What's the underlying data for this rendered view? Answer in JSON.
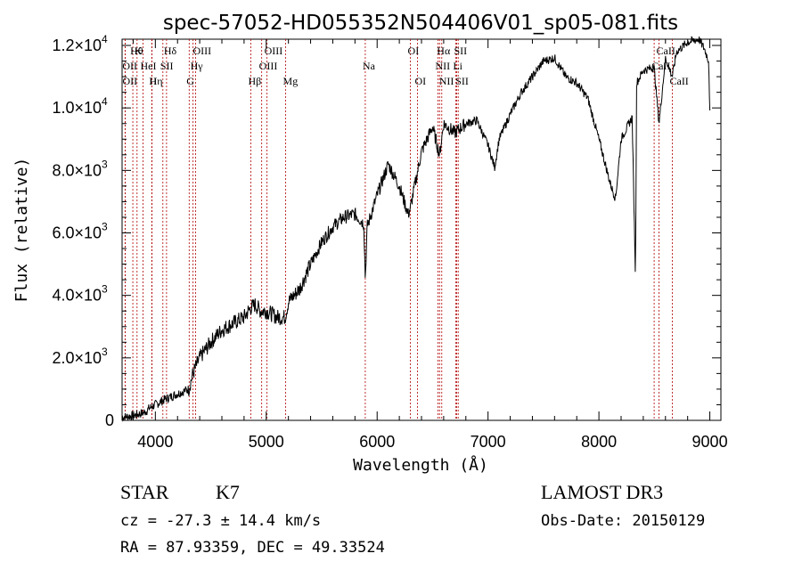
{
  "chart_data": {
    "type": "line",
    "title": "spec-57052-HD055352N504406V01_sp05-081.fits",
    "xlabel": "Wavelength (Å)",
    "ylabel": "Flux (relative)",
    "xlim": [
      3700,
      9100
    ],
    "ylim": [
      0,
      12200
    ],
    "xticks": [
      {
        "value": 4000,
        "label": "4000"
      },
      {
        "value": 5000,
        "label": "5000"
      },
      {
        "value": 6000,
        "label": "6000"
      },
      {
        "value": 7000,
        "label": "7000"
      },
      {
        "value": 8000,
        "label": "8000"
      },
      {
        "value": 9000,
        "label": "9000"
      }
    ],
    "yticks": [
      {
        "value": 0,
        "mant": "0",
        "exp": ""
      },
      {
        "value": 2000,
        "mant": "2.0×10",
        "exp": "3"
      },
      {
        "value": 4000,
        "mant": "4.0×10",
        "exp": "3"
      },
      {
        "value": 6000,
        "mant": "6.0×10",
        "exp": "3"
      },
      {
        "value": 8000,
        "mant": "8.0×10",
        "exp": "3"
      },
      {
        "value": 10000,
        "mant": "1.0×10",
        "exp": "4"
      },
      {
        "value": 12000,
        "mant": "1.2×10",
        "exp": "4"
      }
    ],
    "spectrum": {
      "x": [
        3700,
        3800,
        3900,
        3950,
        4000,
        4100,
        4200,
        4300,
        4340,
        4400,
        4500,
        4600,
        4700,
        4800,
        4860,
        4900,
        4950,
        5000,
        5100,
        5170,
        5200,
        5300,
        5400,
        5500,
        5600,
        5700,
        5800,
        5880,
        5893,
        5910,
        6000,
        6100,
        6200,
        6280,
        6300,
        6400,
        6500,
        6563,
        6600,
        6700,
        6800,
        6900,
        7000,
        7060,
        7100,
        7200,
        7300,
        7400,
        7500,
        7600,
        7700,
        7800,
        7900,
        8000,
        8100,
        8150,
        8200,
        8300,
        8330,
        8340,
        8400,
        8498,
        8542,
        8600,
        8662,
        8700,
        8800,
        8900,
        8950,
        8990,
        9000
      ],
      "y": [
        100,
        150,
        250,
        400,
        500,
        700,
        850,
        1000,
        1500,
        2000,
        2500,
        2900,
        3100,
        3300,
        3600,
        3700,
        3500,
        3500,
        3300,
        3300,
        3800,
        4200,
        5000,
        5700,
        6200,
        6500,
        6600,
        6300,
        4500,
        6200,
        7200,
        8200,
        7500,
        6600,
        6800,
        8600,
        9400,
        8500,
        9500,
        9200,
        9500,
        9600,
        8800,
        8100,
        9000,
        9800,
        10500,
        11000,
        11500,
        11600,
        11000,
        10800,
        10300,
        9000,
        7600,
        7100,
        9000,
        9700,
        4500,
        10800,
        11200,
        11300,
        9500,
        11600,
        11000,
        11800,
        12100,
        12200,
        11900,
        11500,
        9800
      ]
    },
    "lines": [
      {
        "x": 3797,
        "label": "Hθ",
        "row": 0
      },
      {
        "x": 3835,
        "label": "K",
        "row": 0
      },
      {
        "x": 4101,
        "label": "Hδ",
        "row": 0
      },
      {
        "x": 4363,
        "label": "OIII",
        "row": 0
      },
      {
        "x": 5007,
        "label": "OIII",
        "row": 0
      },
      {
        "x": 6300,
        "label": "OI",
        "row": 0
      },
      {
        "x": 6563,
        "label": "Hα",
        "row": 0
      },
      {
        "x": 6717,
        "label": "SII",
        "row": 0
      },
      {
        "x": 8542,
        "label": "CaII",
        "row": 0
      },
      {
        "x": 3727,
        "label": "OII",
        "row": 1
      },
      {
        "x": 3889,
        "label": "HeI",
        "row": 1
      },
      {
        "x": 4068,
        "label": "SII",
        "row": 1
      },
      {
        "x": 4340,
        "label": "Hγ",
        "row": 1
      },
      {
        "x": 4959,
        "label": "OIII",
        "row": 1
      },
      {
        "x": 5893,
        "label": "Na",
        "row": 1
      },
      {
        "x": 6548,
        "label": "NII",
        "row": 1
      },
      {
        "x": 6708,
        "label": "Li",
        "row": 1
      },
      {
        "x": 8498,
        "label": "CaII",
        "row": 1
      },
      {
        "x": 3728,
        "label": "OII",
        "row": 2
      },
      {
        "x": 3970,
        "label": "Hη",
        "row": 2
      },
      {
        "x": 3968,
        "label": "H",
        "row": 2
      },
      {
        "x": 4305,
        "label": "G",
        "row": 2
      },
      {
        "x": 4861,
        "label": "Hβ",
        "row": 2
      },
      {
        "x": 5175,
        "label": "Mg",
        "row": 2
      },
      {
        "x": 6364,
        "label": "OI",
        "row": 2
      },
      {
        "x": 6583,
        "label": "NII",
        "row": 2
      },
      {
        "x": 6731,
        "label": "SII",
        "row": 2
      },
      {
        "x": 8662,
        "label": "CaII",
        "row": 2
      }
    ]
  },
  "info": {
    "class": "STAR",
    "subclass": "K7",
    "survey": "LAMOST DR3",
    "cz": "cz = -27.3 ± 14.4 km/s",
    "obsdate": "Obs-Date: 20150129",
    "coords": "RA =  87.93359, DEC =  49.33524"
  }
}
